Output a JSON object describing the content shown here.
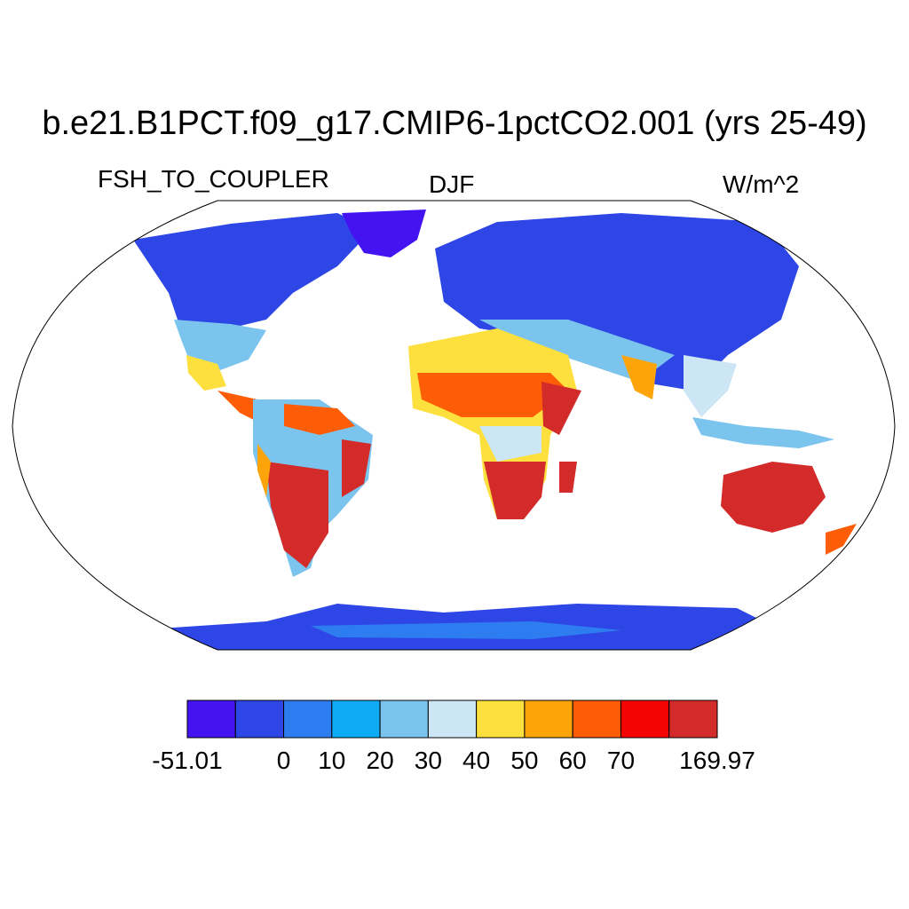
{
  "plot": {
    "title": "b.e21.B1PCT.f09_g17.CMIP6-1pctCO2.001 (yrs 25-49)",
    "left_string": "FSH_TO_COUPLER",
    "center_string": "DJF",
    "right_string": "W/m^2"
  },
  "colorbar": {
    "colors": [
      "#4313f2",
      "#2e46e6",
      "#2d7cf0",
      "#0eacf7",
      "#7bc4ee",
      "#cde6f6",
      "#fde03d",
      "#fda40b",
      "#fd5d06",
      "#f50404",
      "#d32a2a"
    ],
    "labels": [
      "-51.01",
      "",
      "0",
      "10",
      "20",
      "30",
      "40",
      "50",
      "60",
      "70",
      "",
      "169.97"
    ]
  },
  "map_colors": {
    "ocean": "#ffffff",
    "coast": "#000000"
  }
}
